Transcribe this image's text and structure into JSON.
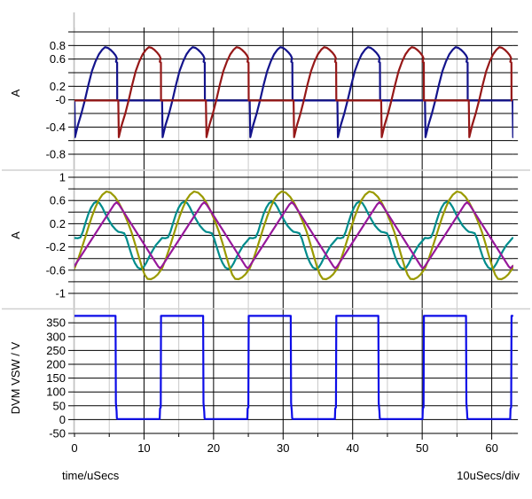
{
  "chart_data": {
    "type": "line",
    "title": "",
    "xlabel": "time/uSecs",
    "x_div_label": "10uSecs/div",
    "x": {
      "min": 0,
      "max": 63,
      "major_ticks": [
        0,
        10,
        20,
        30,
        40,
        50,
        60
      ],
      "minor_ticks": [
        5,
        15,
        25,
        35,
        45,
        55
      ],
      "tick_labels": [
        "0",
        "10",
        "20",
        "30",
        "40",
        "50",
        "60"
      ]
    },
    "style": {
      "grid_major_color": "#000000",
      "grid_minor_color": "#c9c9c9",
      "separator_color": "#d0d0d0",
      "axis_gray_color": "#c0c0c0",
      "background": "#ffffff"
    },
    "panels": [
      {
        "id": "rectifier-currents",
        "ylabel": "A",
        "ymin": -0.8,
        "ymax": 1.0,
        "grid_step": 0.2,
        "tick_labels": [
          [
            "0.8",
            0.8
          ],
          [
            "0.6",
            0.6
          ],
          [
            "0.2",
            0.2
          ],
          [
            "-0",
            0
          ],
          [
            "-0.4",
            -0.4
          ],
          [
            "-0.8",
            -0.8
          ]
        ],
        "series": [
          {
            "name": "rectifier-current-1",
            "color": "#14148C",
            "period": 12.6,
            "phase": 0,
            "points": [
              [
                0,
                -0.01
              ],
              [
                0.08,
                -0.55
              ],
              [
                0.5,
                -0.37
              ],
              [
                1.0,
                -0.2
              ],
              [
                1.5,
                0.0
              ],
              [
                2.0,
                0.22
              ],
              [
                2.5,
                0.42
              ],
              [
                3.0,
                0.56
              ],
              [
                3.5,
                0.67
              ],
              [
                4.0,
                0.74
              ],
              [
                4.4,
                0.775
              ],
              [
                4.8,
                0.765
              ],
              [
                5.2,
                0.735
              ],
              [
                5.6,
                0.695
              ],
              [
                5.9,
                0.655
              ],
              [
                6.08,
                0.615
              ],
              [
                5.97,
                0.56
              ],
              [
                6.13,
                0.55
              ],
              [
                6.15,
                -0.01
              ],
              [
                12.52,
                -0.01
              ]
            ]
          },
          {
            "name": "rectifier-current-2",
            "color": "#961818",
            "period": 12.6,
            "phase": 6.3,
            "points": [
              [
                0,
                -0.01
              ],
              [
                0.08,
                -0.55
              ],
              [
                0.5,
                -0.37
              ],
              [
                1.0,
                -0.2
              ],
              [
                1.5,
                0.0
              ],
              [
                2.0,
                0.22
              ],
              [
                2.5,
                0.42
              ],
              [
                3.0,
                0.56
              ],
              [
                3.5,
                0.67
              ],
              [
                4.0,
                0.74
              ],
              [
                4.4,
                0.775
              ],
              [
                4.8,
                0.765
              ],
              [
                5.2,
                0.735
              ],
              [
                5.6,
                0.695
              ],
              [
                5.9,
                0.655
              ],
              [
                6.08,
                0.615
              ],
              [
                5.97,
                0.56
              ],
              [
                6.13,
                0.55
              ],
              [
                6.15,
                -0.01
              ],
              [
                12.52,
                -0.01
              ]
            ]
          }
        ]
      },
      {
        "id": "resonant-currents",
        "ylabel": "A",
        "ymin": -1.0,
        "ymax": 1.0,
        "grid_step": 0.2,
        "tick_labels": [
          [
            "1",
            1
          ],
          [
            "0.6",
            0.6
          ],
          [
            "0.2",
            0.2
          ],
          [
            "-0.2",
            -0.2
          ],
          [
            "-0.6",
            -0.6
          ],
          [
            "-1",
            -1
          ]
        ],
        "series": [
          {
            "name": "secondary-current",
            "color": "#008C8C",
            "period": 12.6,
            "phase": 0,
            "points": [
              [
                0,
                -0.045
              ],
              [
                0.45,
                -0.05
              ],
              [
                0.85,
                -0.035
              ],
              [
                1.2,
                0.06
              ],
              [
                1.6,
                0.22
              ],
              [
                2.0,
                0.37
              ],
              [
                2.4,
                0.48
              ],
              [
                2.8,
                0.555
              ],
              [
                3.2,
                0.58
              ],
              [
                3.6,
                0.555
              ],
              [
                4.0,
                0.48
              ],
              [
                4.4,
                0.38
              ],
              [
                4.9,
                0.27
              ],
              [
                5.4,
                0.17
              ],
              [
                5.9,
                0.1
              ],
              [
                6.3,
                0.06
              ],
              [
                6.75,
                0.05
              ],
              [
                7.15,
                0.035
              ],
              [
                7.5,
                -0.06
              ],
              [
                7.9,
                -0.22
              ],
              [
                8.3,
                -0.37
              ],
              [
                8.7,
                -0.48
              ],
              [
                9.1,
                -0.555
              ],
              [
                9.5,
                -0.58
              ],
              [
                9.9,
                -0.555
              ],
              [
                10.3,
                -0.48
              ],
              [
                10.7,
                -0.38
              ],
              [
                11.2,
                -0.27
              ],
              [
                11.7,
                -0.17
              ],
              [
                12.2,
                -0.1
              ],
              [
                12.6,
                -0.045
              ]
            ]
          },
          {
            "name": "resonant-inductor-current",
            "color": "#9A9A00",
            "period": 12.6,
            "phase": 0,
            "points": [
              [
                0,
                -0.57
              ],
              [
                0.5,
                -0.42
              ],
              [
                1.0,
                -0.24
              ],
              [
                1.5,
                -0.05
              ],
              [
                2.0,
                0.14
              ],
              [
                2.5,
                0.32
              ],
              [
                3.0,
                0.48
              ],
              [
                3.5,
                0.61
              ],
              [
                4.0,
                0.7
              ],
              [
                4.6,
                0.755
              ],
              [
                5.2,
                0.735
              ],
              [
                5.8,
                0.665
              ],
              [
                6.4,
                0.555
              ],
              [
                7.0,
                0.415
              ],
              [
                7.6,
                0.245
              ],
              [
                8.2,
                0.055
              ],
              [
                8.7,
                -0.14
              ],
              [
                9.2,
                -0.35
              ],
              [
                9.7,
                -0.55
              ],
              [
                10.1,
                -0.68
              ],
              [
                10.5,
                -0.75
              ],
              [
                11.0,
                -0.755
              ],
              [
                11.5,
                -0.725
              ],
              [
                12.0,
                -0.67
              ],
              [
                12.6,
                -0.57
              ]
            ]
          },
          {
            "name": "magnetizing-current",
            "color": "#97189B",
            "period": 12.6,
            "phase": 0,
            "points": [
              [
                0,
                -0.53
              ],
              [
                5.7,
                0.53
              ],
              [
                6.05,
                0.57
              ],
              [
                6.4,
                0.53
              ],
              [
                12.0,
                -0.53
              ],
              [
                12.3,
                -0.57
              ],
              [
                12.6,
                -0.53
              ]
            ]
          }
        ]
      },
      {
        "id": "switch-node-voltage",
        "ylabel": "DVM VSW / V",
        "ymin": -50,
        "ymax": 350,
        "grid_step": 50,
        "tick_labels": [
          [
            "350",
            350
          ],
          [
            "300",
            300
          ],
          [
            "250",
            250
          ],
          [
            "200",
            200
          ],
          [
            "150",
            150
          ],
          [
            "100",
            100
          ],
          [
            "50",
            50
          ],
          [
            "0",
            0
          ],
          [
            "-50",
            -50
          ]
        ],
        "series": [
          {
            "name": "vsw-square-wave",
            "color": "#0D0DE8",
            "period": 12.6,
            "phase": 0,
            "points": [
              [
                0,
                375
              ],
              [
                5.9,
                375
              ],
              [
                5.95,
                60
              ],
              [
                6.05,
                30
              ],
              [
                6.1,
                5
              ],
              [
                6.2,
                2
              ],
              [
                12.25,
                2
              ],
              [
                12.3,
                40
              ],
              [
                12.4,
                44
              ],
              [
                12.45,
                375
              ],
              [
                12.6,
                375
              ]
            ]
          }
        ]
      }
    ]
  }
}
